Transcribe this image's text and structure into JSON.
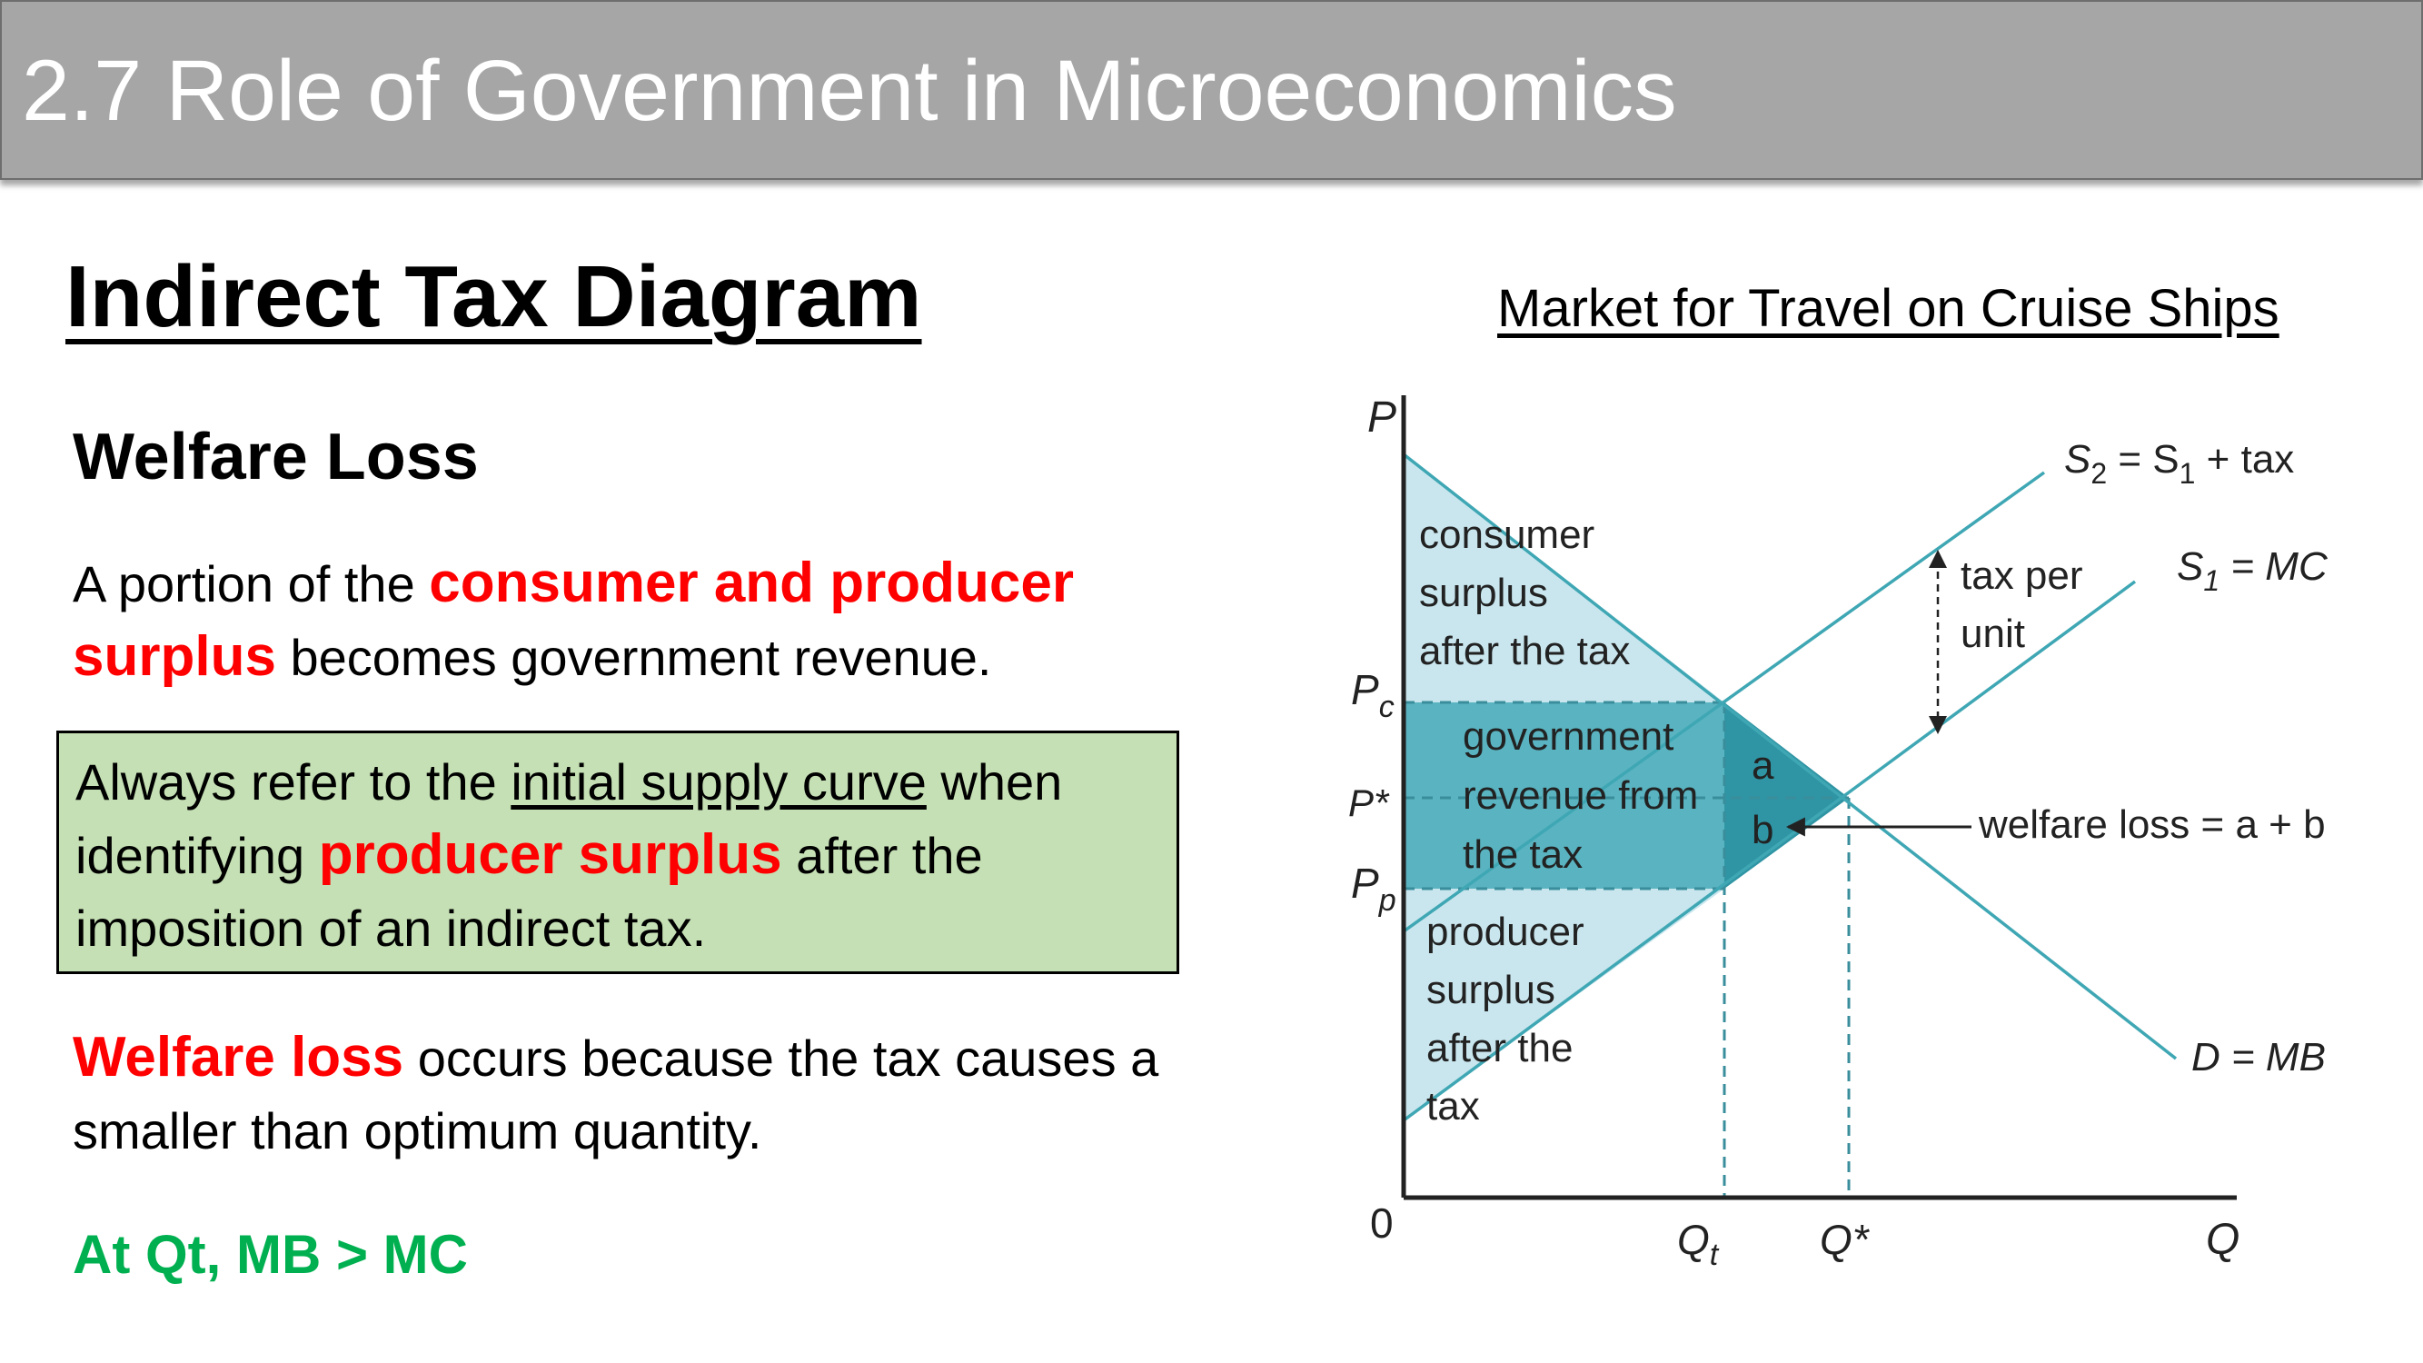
{
  "slide": {
    "title": "2.7 Role of Government in Microeconomics",
    "heading": "Indirect Tax Diagram",
    "subheading": "Welfare Loss",
    "para1": {
      "t1": "A portion of the ",
      "red": "consumer and producer surplus",
      "t2": " becomes government revenue."
    },
    "note": {
      "t1": "Always refer to the ",
      "underlined": "initial supply curve",
      "t2": " when identifying ",
      "red": "producer surplus",
      "t3": " after the imposition of an indirect tax."
    },
    "para2": {
      "red": "Welfare loss",
      "t1": " occurs because the tax causes a smaller than optimum quantity."
    },
    "green_note": "At Qt, MB > MC",
    "colors": {
      "red": "#ff0000",
      "green": "#00b050",
      "note_bg": "#c5e0b4",
      "teal": "#3fa7b4",
      "light_teal": "#c9e6ee"
    }
  },
  "diagram": {
    "title": "Market for Travel on Cruise Ships",
    "axes": {
      "y": "P",
      "x": "Q",
      "origin": "0"
    },
    "price_labels": {
      "pc": "P",
      "pc_sub": "c",
      "pstar": "P*",
      "pp": "P",
      "pp_sub": "p"
    },
    "quantity_labels": {
      "qt": "Q",
      "qt_sub": "t",
      "qstar": "Q*"
    },
    "curves": {
      "s2": {
        "a": "S",
        "a_sub": "2",
        "mid": " = S",
        "b_sub": "1",
        "end": " + tax"
      },
      "s1": {
        "a": "S",
        "a_sub": "1",
        "end": " = MC"
      },
      "d": "D = MB"
    },
    "regions": {
      "consumer_surplus": [
        "consumer",
        "surplus",
        "after the tax"
      ],
      "government_revenue": [
        "government",
        "revenue from",
        "the tax"
      ],
      "producer_surplus": [
        "producer",
        "surplus",
        "after the",
        "tax"
      ],
      "area_a": "a",
      "area_b": "b"
    },
    "annotations": {
      "tax_per_unit": [
        "tax per",
        "unit"
      ],
      "welfare_loss": "welfare loss = a + b"
    }
  }
}
